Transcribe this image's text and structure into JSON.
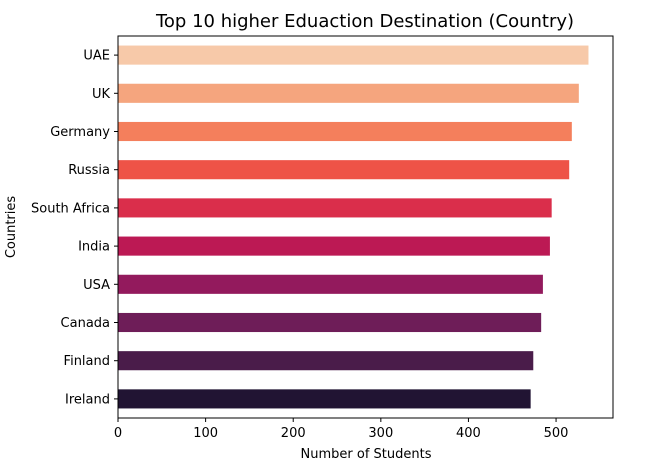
{
  "chart_data": {
    "type": "bar",
    "orientation": "horizontal",
    "title": "Top 10 higher Eduaction Destination (Country)",
    "xlabel": "Number of Students",
    "ylabel": "Countries",
    "categories": [
      "UAE",
      "UK",
      "Germany",
      "Russia",
      "South Africa",
      "India",
      "USA",
      "Canada",
      "Finland",
      "Ireland"
    ],
    "values": [
      537,
      526,
      518,
      515,
      495,
      493,
      485,
      483,
      474,
      471
    ],
    "xlim": [
      0,
      565
    ],
    "xticks": [
      0,
      100,
      200,
      300,
      400,
      500
    ],
    "colors": [
      "#F7C9A9",
      "#F5A57E",
      "#F47F5C",
      "#EE5347",
      "#DA2E4B",
      "#BC1954",
      "#931A5D",
      "#6E1D58",
      "#4A1C4A",
      "#211433"
    ],
    "grid": false,
    "legend": "none"
  }
}
